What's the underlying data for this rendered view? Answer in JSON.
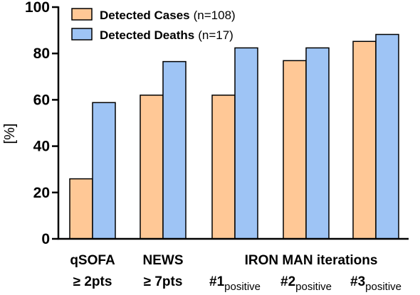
{
  "chart_data": {
    "type": "bar",
    "ylabel": "[%]",
    "ylim": [
      0,
      100
    ],
    "yticks": [
      "0",
      "20",
      "40",
      "60",
      "80",
      "100"
    ],
    "legend_position": "top-left",
    "categories": [
      {
        "line1": "qSOFA",
        "line2": "≥ 2pts",
        "line2_sub": ""
      },
      {
        "line1": "NEWS",
        "line2": "≥ 7pts",
        "line2_sub": ""
      },
      {
        "line1": "",
        "line2": "#1",
        "line2_sub": "positive"
      },
      {
        "line1": "",
        "line2": "#2",
        "line2_sub": "positive"
      },
      {
        "line1": "",
        "line2": "#3",
        "line2_sub": "positive"
      }
    ],
    "group_label": "IRON MAN iterations",
    "series": [
      {
        "name": "Detected Cases",
        "note": "(n=108)",
        "color": "#FFC896",
        "values": [
          25.9,
          62.0,
          62.0,
          76.9,
          85.2
        ]
      },
      {
        "name": "Detected Deaths",
        "note": "(n=17)",
        "color": "#9EC4F5",
        "values": [
          58.8,
          76.5,
          82.4,
          82.4,
          88.2
        ]
      }
    ]
  }
}
